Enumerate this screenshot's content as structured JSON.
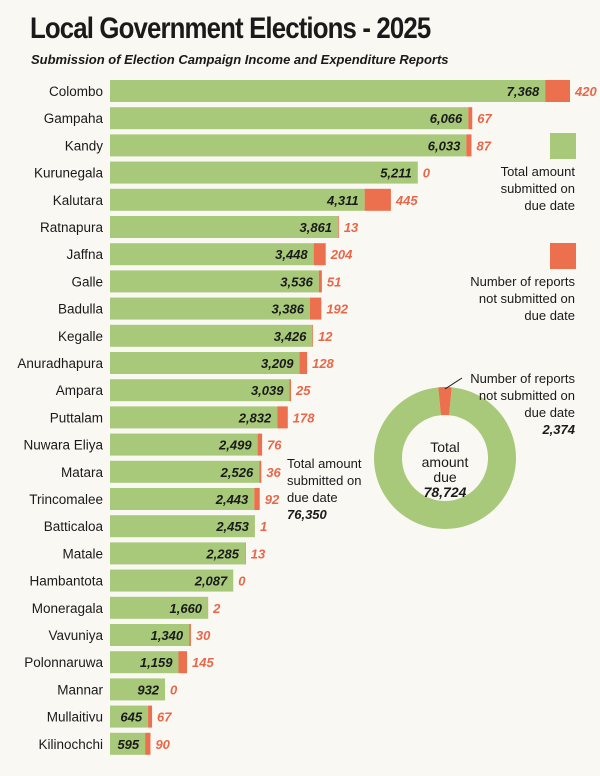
{
  "title": "Local Government Elections - 2025",
  "subtitle": "Submission of Election Campaign Income and Expenditure Reports",
  "colors": {
    "submitted": "#a9c97a",
    "not_submitted": "#ec6f4e",
    "not_submitted_text": "#e8674a"
  },
  "legend": {
    "submitted_line1": "Total amount",
    "submitted_line2": "submitted on",
    "submitted_line3": "due date",
    "not_submitted_line1": "Number of reports",
    "not_submitted_line2": "not submitted on",
    "not_submitted_line3": "due date"
  },
  "donut": {
    "center_line1": "Total",
    "center_line2": "amount",
    "center_line3": "due",
    "total_due": "78,724",
    "left_line1": "Total amount",
    "left_line2": "submitted on",
    "left_line3": "due date",
    "submitted_total": "76,350",
    "right_line1": "Number of reports",
    "right_line2": "not submitted on",
    "right_line3": "due date",
    "not_submitted_total": "2,374"
  },
  "chart_data": [
    {
      "type": "bar",
      "stacked": true,
      "orientation": "horizontal",
      "title": "Local Government Elections - 2025",
      "subtitle": "Submission of Election Campaign Income and Expenditure Reports",
      "categories": [
        "Colombo",
        "Gampaha",
        "Kandy",
        "Kurunegala",
        "Kalutara",
        "Ratnapura",
        "Jaffna",
        "Galle",
        "Badulla",
        "Kegalle",
        "Anuradhapura",
        "Ampara",
        "Puttalam",
        "Nuwara Eliya",
        "Matara",
        "Trincomalee",
        "Batticaloa",
        "Matale",
        "Hambantota",
        "Moneragala",
        "Vavuniya",
        "Polonnaruwa",
        "Mannar",
        "Mullaitivu",
        "Kilinochchi"
      ],
      "series": [
        {
          "name": "Total amount submitted on due date",
          "values": [
            7368,
            6066,
            6033,
            5211,
            4311,
            3861,
            3448,
            3536,
            3386,
            3426,
            3209,
            3039,
            2832,
            2499,
            2526,
            2443,
            2453,
            2285,
            2087,
            1660,
            1340,
            1159,
            932,
            645,
            595
          ],
          "labels": [
            "7,368",
            "6,066",
            "6,033",
            "5,211",
            "4,311",
            "3,861",
            "3,448",
            "3,536",
            "3,386",
            "3,426",
            "3,209",
            "3,039",
            "2,832",
            "2,499",
            "2,526",
            "2,443",
            "2,453",
            "2,285",
            "2,087",
            "1,660",
            "1,340",
            "1,159",
            "932",
            "645",
            "595"
          ]
        },
        {
          "name": "Number of reports not submitted on due date",
          "values": [
            420,
            67,
            87,
            0,
            445,
            13,
            204,
            51,
            192,
            12,
            128,
            25,
            178,
            76,
            36,
            92,
            1,
            13,
            0,
            2,
            30,
            145,
            0,
            67,
            90
          ],
          "labels": [
            "420",
            "67",
            "87",
            "0",
            "445",
            "13",
            "204",
            "51",
            "192",
            "12",
            "128",
            "25",
            "178",
            "76",
            "36",
            "92",
            "1",
            "13",
            "0",
            "2",
            "30",
            "145",
            "0",
            "67",
            "90"
          ]
        }
      ],
      "xlim": [
        0,
        7788
      ],
      "grid": false,
      "legend": "right"
    },
    {
      "type": "pie",
      "donut": true,
      "categories": [
        "Total amount submitted on due date",
        "Number of reports not submitted on due date"
      ],
      "values": [
        76350,
        2374
      ],
      "labels": [
        "76,350",
        "2,374"
      ],
      "total": 78724
    }
  ]
}
